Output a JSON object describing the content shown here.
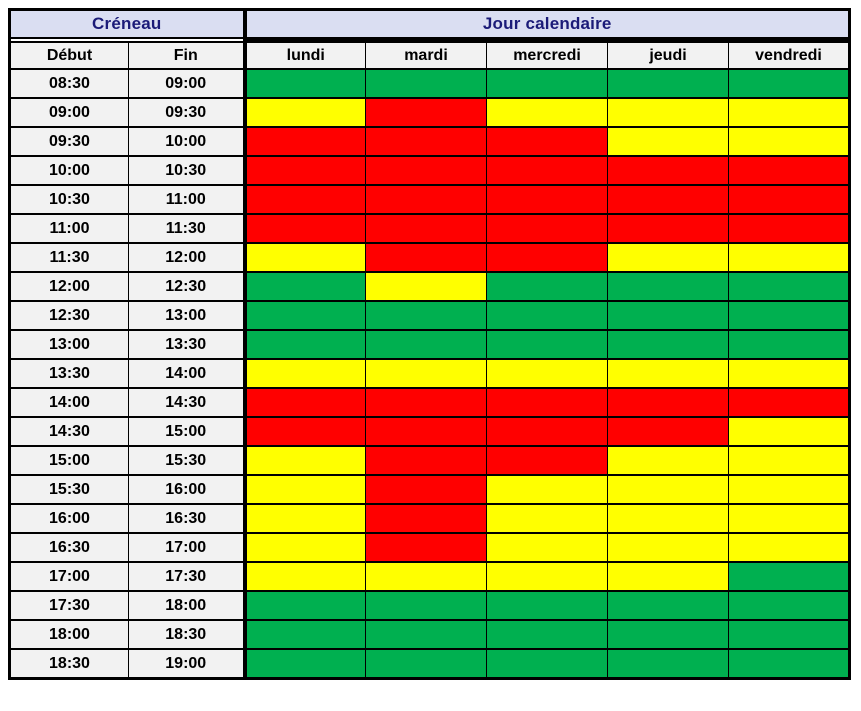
{
  "header": {
    "left_title": "Créneau",
    "right_title": "Jour calendaire",
    "time_columns": [
      "Début",
      "Fin"
    ],
    "days": [
      "lundi",
      "mardi",
      "mercredi",
      "jeudi",
      "vendredi"
    ]
  },
  "colors": {
    "green": "#00B050",
    "yellow": "#FFFF00",
    "red": "#FF0000",
    "header_bg": "#DADEF2",
    "header_text": "#1B1B78",
    "subheader_bg": "#F2F2F2",
    "border": "#000000"
  },
  "chart_data": {
    "type": "heatmap",
    "title": "",
    "x_categories": [
      "lundi",
      "mardi",
      "mercredi",
      "jeudi",
      "vendredi"
    ],
    "y_axis_columns": [
      "Début",
      "Fin"
    ],
    "legend_position": "none",
    "grid": true,
    "color_scale": {
      "green": "#00B050",
      "yellow": "#FFFF00",
      "red": "#FF0000"
    },
    "rows": [
      {
        "debut": "08:30",
        "fin": "09:00",
        "days": [
          "green",
          "green",
          "green",
          "green",
          "green"
        ]
      },
      {
        "debut": "09:00",
        "fin": "09:30",
        "days": [
          "yellow",
          "red",
          "yellow",
          "yellow",
          "yellow"
        ]
      },
      {
        "debut": "09:30",
        "fin": "10:00",
        "days": [
          "red",
          "red",
          "red",
          "yellow",
          "yellow"
        ]
      },
      {
        "debut": "10:00",
        "fin": "10:30",
        "days": [
          "red",
          "red",
          "red",
          "red",
          "red"
        ]
      },
      {
        "debut": "10:30",
        "fin": "11:00",
        "days": [
          "red",
          "red",
          "red",
          "red",
          "red"
        ]
      },
      {
        "debut": "11:00",
        "fin": "11:30",
        "days": [
          "red",
          "red",
          "red",
          "red",
          "red"
        ]
      },
      {
        "debut": "11:30",
        "fin": "12:00",
        "days": [
          "yellow",
          "red",
          "red",
          "yellow",
          "yellow"
        ]
      },
      {
        "debut": "12:00",
        "fin": "12:30",
        "days": [
          "green",
          "yellow",
          "green",
          "green",
          "green"
        ]
      },
      {
        "debut": "12:30",
        "fin": "13:00",
        "days": [
          "green",
          "green",
          "green",
          "green",
          "green"
        ]
      },
      {
        "debut": "13:00",
        "fin": "13:30",
        "days": [
          "green",
          "green",
          "green",
          "green",
          "green"
        ]
      },
      {
        "debut": "13:30",
        "fin": "14:00",
        "days": [
          "yellow",
          "yellow",
          "yellow",
          "yellow",
          "yellow"
        ]
      },
      {
        "debut": "14:00",
        "fin": "14:30",
        "days": [
          "red",
          "red",
          "red",
          "red",
          "red"
        ]
      },
      {
        "debut": "14:30",
        "fin": "15:00",
        "days": [
          "red",
          "red",
          "red",
          "red",
          "yellow"
        ]
      },
      {
        "debut": "15:00",
        "fin": "15:30",
        "days": [
          "yellow",
          "red",
          "red",
          "yellow",
          "yellow"
        ]
      },
      {
        "debut": "15:30",
        "fin": "16:00",
        "days": [
          "yellow",
          "red",
          "yellow",
          "yellow",
          "yellow"
        ]
      },
      {
        "debut": "16:00",
        "fin": "16:30",
        "days": [
          "yellow",
          "red",
          "yellow",
          "yellow",
          "yellow"
        ]
      },
      {
        "debut": "16:30",
        "fin": "17:00",
        "days": [
          "yellow",
          "red",
          "yellow",
          "yellow",
          "yellow"
        ]
      },
      {
        "debut": "17:00",
        "fin": "17:30",
        "days": [
          "yellow",
          "yellow",
          "yellow",
          "yellow",
          "green"
        ]
      },
      {
        "debut": "17:30",
        "fin": "18:00",
        "days": [
          "green",
          "green",
          "green",
          "green",
          "green"
        ]
      },
      {
        "debut": "18:00",
        "fin": "18:30",
        "days": [
          "green",
          "green",
          "green",
          "green",
          "green"
        ]
      },
      {
        "debut": "18:30",
        "fin": "19:00",
        "days": [
          "green",
          "green",
          "green",
          "green",
          "green"
        ]
      }
    ]
  }
}
